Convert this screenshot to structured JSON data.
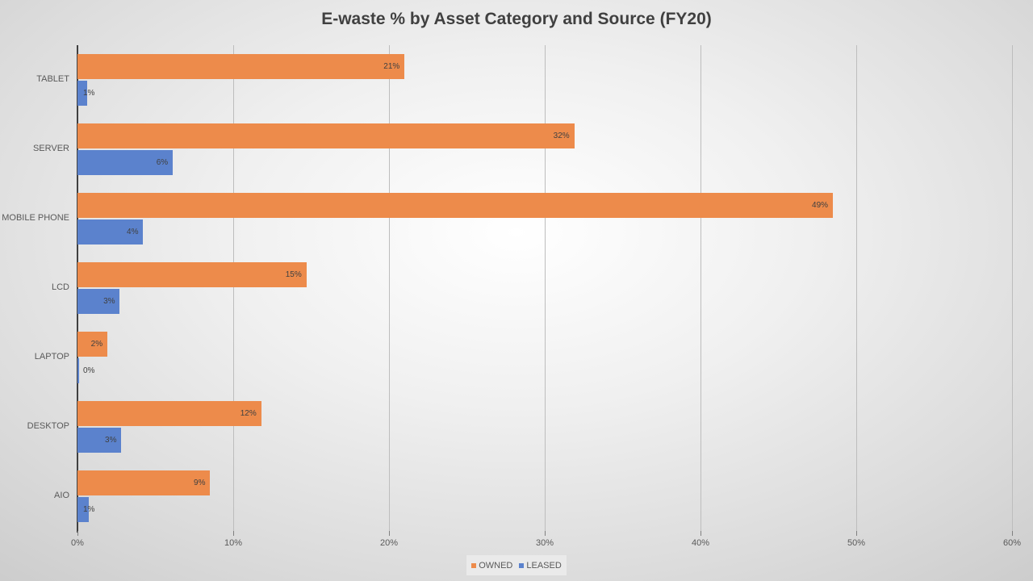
{
  "chart_data": {
    "type": "bar",
    "orientation": "horizontal",
    "title": "E-waste % by Asset Category and Source (FY20)",
    "xlabel": "",
    "ylabel": "",
    "xlim": [
      0,
      60
    ],
    "x_ticks": [
      "0%",
      "10%",
      "20%",
      "30%",
      "40%",
      "50%",
      "60%"
    ],
    "grid": true,
    "legend_position": "bottom",
    "categories": [
      "TABLET",
      "SERVER",
      "MOBILE PHONE",
      "LCD",
      "LAPTOP",
      "DESKTOP",
      "AIO"
    ],
    "series": [
      {
        "name": "OWNED",
        "color": "#ed8b4b",
        "values": [
          21.0,
          31.9,
          48.5,
          14.7,
          1.9,
          11.8,
          8.5
        ],
        "labels": [
          "21%",
          "32%",
          "49%",
          "15%",
          "2%",
          "12%",
          "9%"
        ]
      },
      {
        "name": "LEASED",
        "color": "#5b82cd",
        "values": [
          0.6,
          6.1,
          4.2,
          2.7,
          0.1,
          2.8,
          0.7
        ],
        "labels": [
          "1%",
          "6%",
          "4%",
          "3%",
          "0%",
          "3%",
          "1%"
        ]
      }
    ]
  },
  "legend": {
    "owned": "OWNED",
    "leased": "LEASED"
  }
}
